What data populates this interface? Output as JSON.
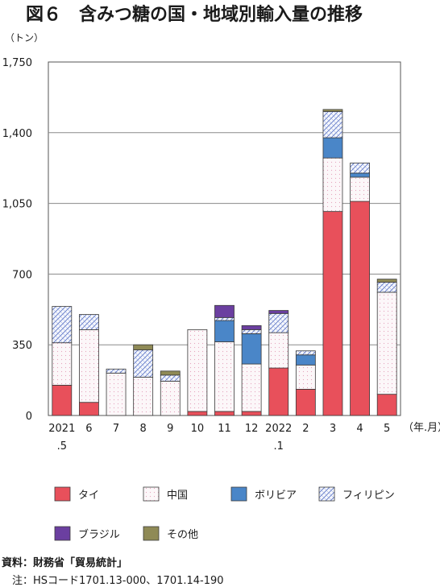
{
  "figure": {
    "title": "図６　含みつ糖の国・地域別輸入量の推移",
    "unit": "（トン）",
    "source_label": "資料：財務省「貿易統計」",
    "note_label": "　注：HSコード1701.13-000、1701.14-190"
  },
  "colors": {
    "タイ": "#e8505b",
    "中国": "#fbf4f7",
    "ボリビア": "#4a86c8",
    "フィリピン": "#f4f6fc",
    "ブラジル": "#6b3fa0",
    "その他": "#8f8a56"
  },
  "chart_data": {
    "type": "bar",
    "stacked": true,
    "x_unit_label": "（年.月）",
    "categories": [
      "2021.5",
      "6",
      "7",
      "8",
      "9",
      "10",
      "11",
      "12",
      "2022.1",
      "2",
      "3",
      "4",
      "5"
    ],
    "category_labels": [
      [
        "2021",
        ".5"
      ],
      [
        "6"
      ],
      [
        "7"
      ],
      [
        "8"
      ],
      [
        "9"
      ],
      [
        "10"
      ],
      [
        "11"
      ],
      [
        "12"
      ],
      [
        "2022",
        ".1"
      ],
      [
        "2"
      ],
      [
        "3"
      ],
      [
        "4"
      ],
      [
        "5"
      ]
    ],
    "series": [
      {
        "name": "タイ",
        "values": [
          150,
          65,
          0,
          0,
          0,
          20,
          20,
          20,
          235,
          130,
          1010,
          1060,
          105
        ]
      },
      {
        "name": "中国",
        "values": [
          210,
          360,
          210,
          190,
          170,
          405,
          345,
          235,
          175,
          120,
          265,
          120,
          505
        ]
      },
      {
        "name": "ボリビア",
        "values": [
          0,
          0,
          0,
          0,
          0,
          0,
          105,
          150,
          0,
          50,
          100,
          20,
          0
        ]
      },
      {
        "name": "フィリピン",
        "values": [
          180,
          75,
          20,
          135,
          30,
          0,
          15,
          20,
          95,
          20,
          130,
          50,
          50
        ]
      },
      {
        "name": "ブラジル",
        "values": [
          0,
          0,
          0,
          0,
          0,
          0,
          60,
          20,
          15,
          0,
          0,
          0,
          0
        ]
      },
      {
        "name": "その他",
        "values": [
          0,
          0,
          0,
          25,
          20,
          0,
          0,
          0,
          0,
          0,
          10,
          0,
          15
        ]
      }
    ],
    "yticks": [
      "0",
      "350",
      "700",
      "1,050",
      "1,400",
      "1,750"
    ],
    "ylim": [
      0,
      1750
    ],
    "grid": true,
    "legend_position": "bottom"
  }
}
